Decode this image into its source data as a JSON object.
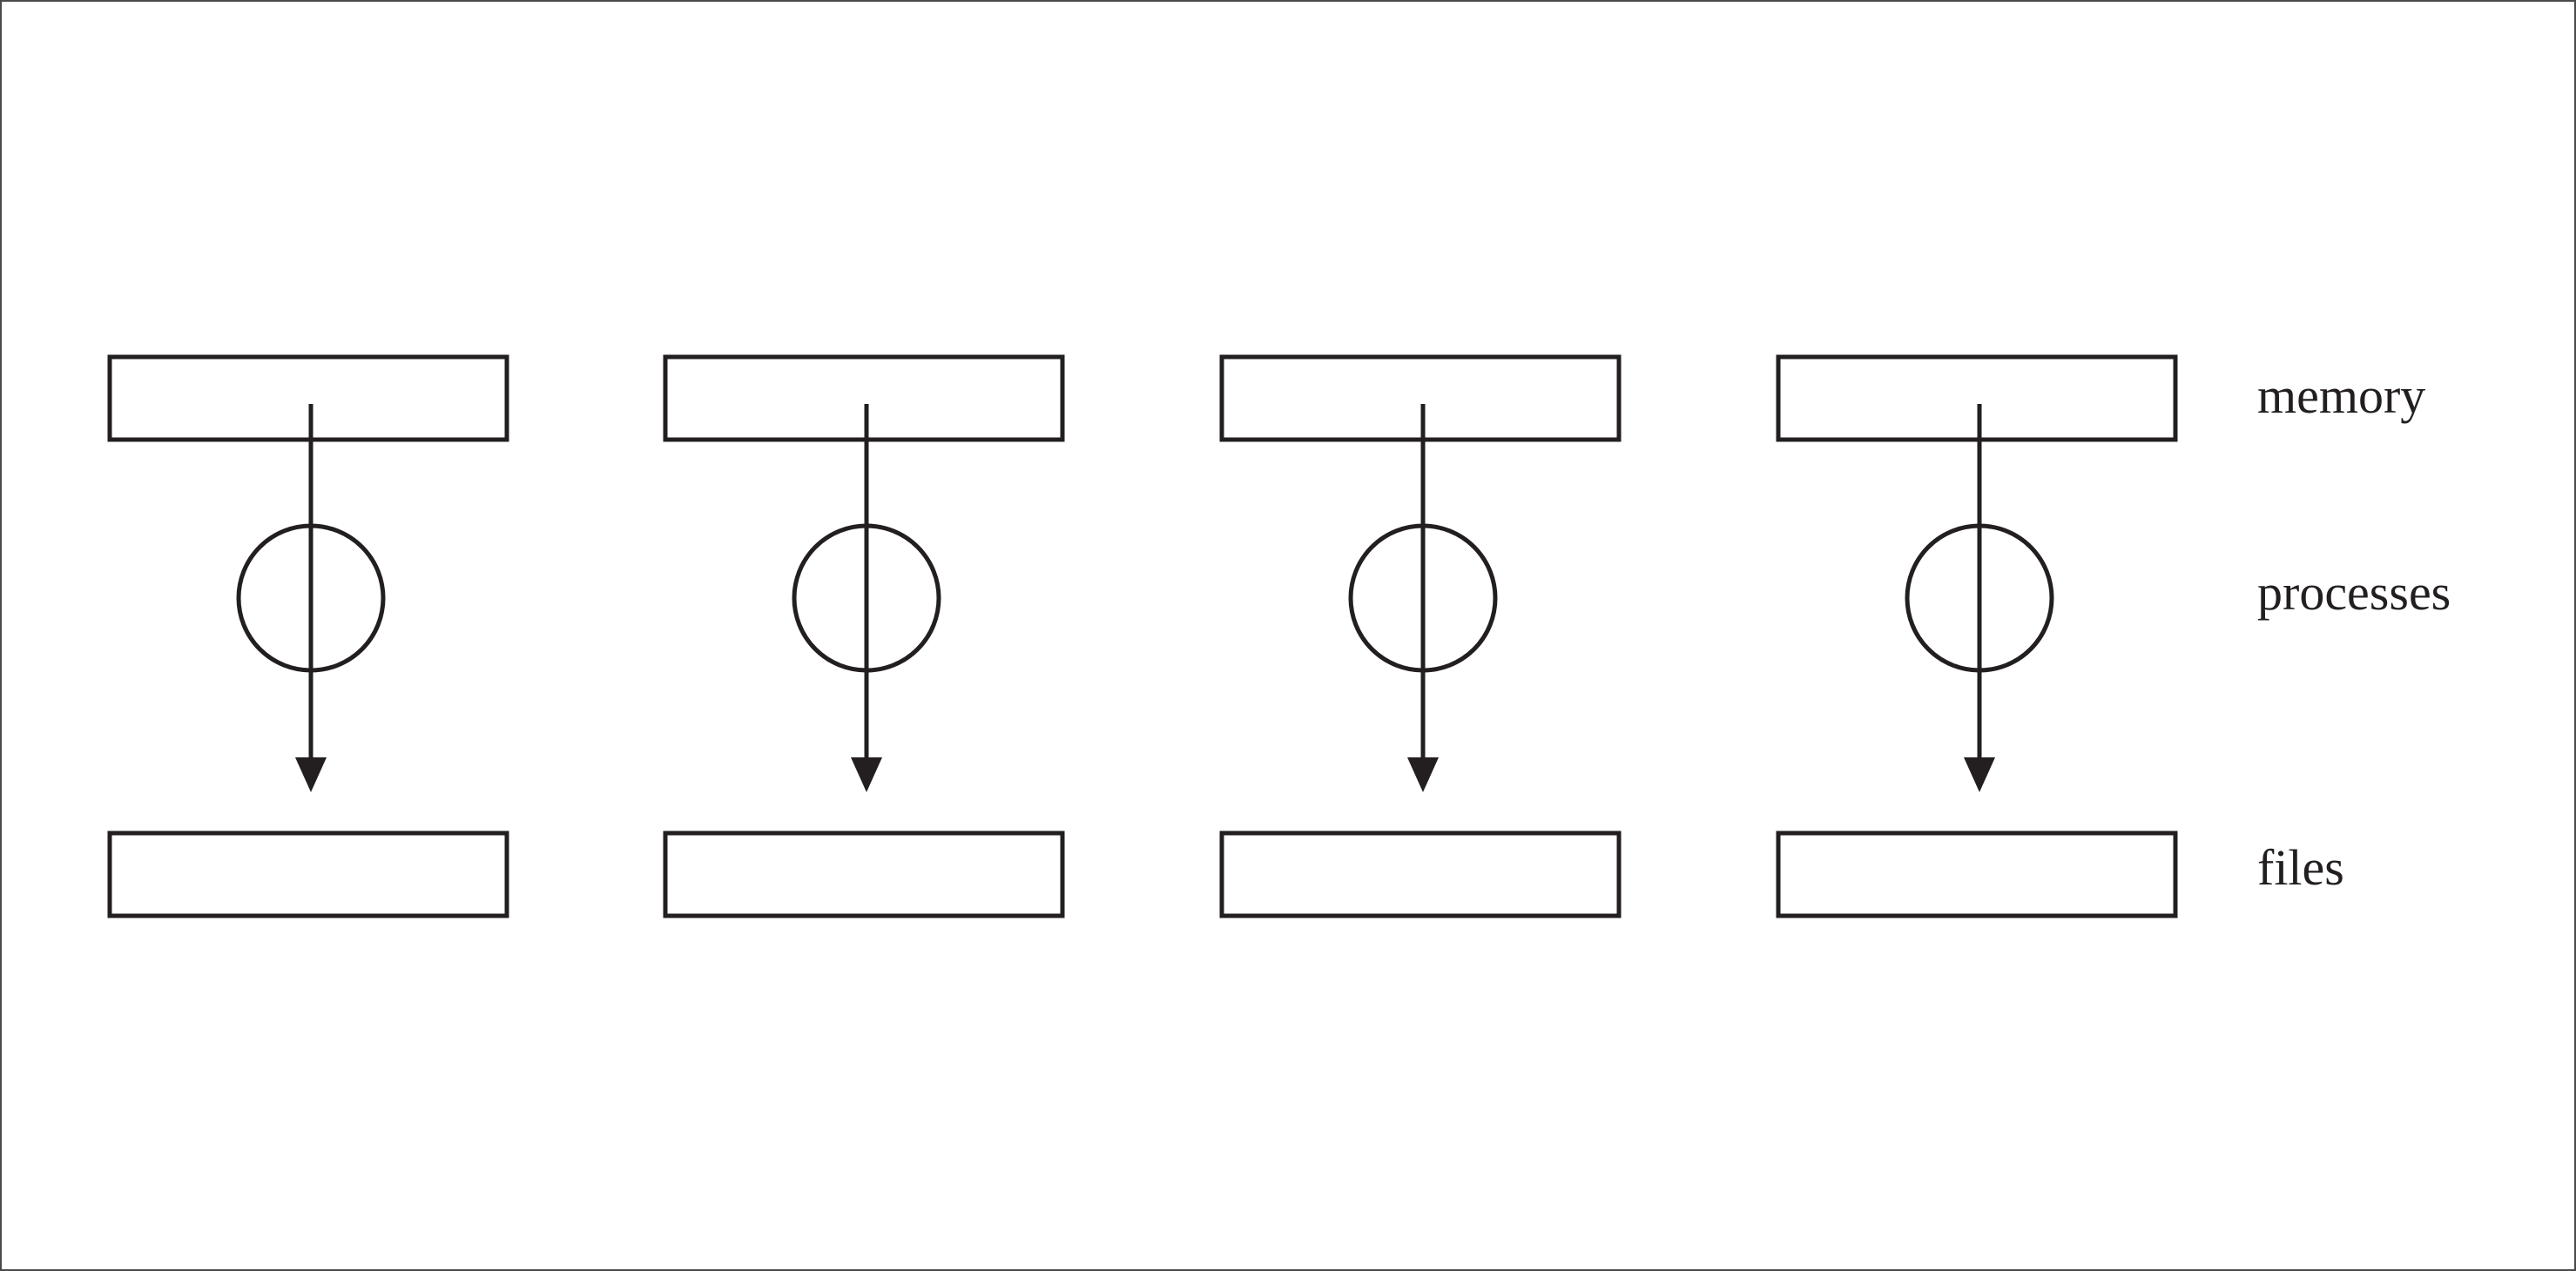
{
  "diagram": {
    "row_labels": {
      "memory": "memory",
      "processes": "processes",
      "files": "files"
    },
    "columns": 4,
    "colors": {
      "stroke": "#231f20",
      "background": "#ffffff",
      "border": "#4a4a4a"
    }
  }
}
